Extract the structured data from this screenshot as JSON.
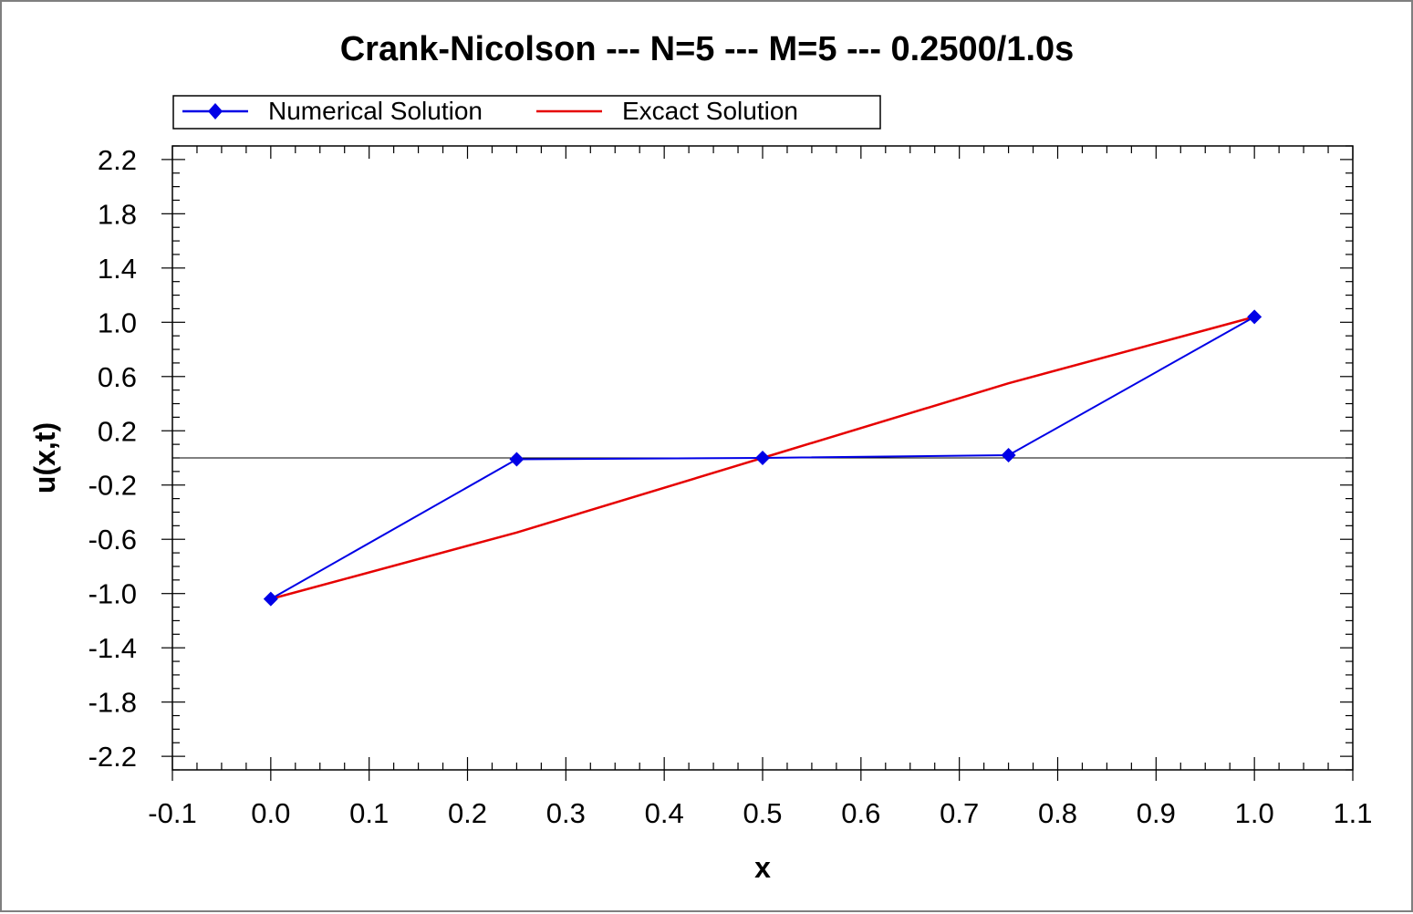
{
  "chart_data": {
    "type": "line",
    "title": "Crank-Nicolson --- N=5 --- M=5 --- 0.2500/1.0s",
    "xlabel": "x",
    "ylabel": "u(x,t)",
    "xlim": [
      -0.1,
      1.1
    ],
    "ylim": [
      -2.3,
      2.3
    ],
    "xticks": [
      -0.1,
      0.0,
      0.1,
      0.2,
      0.3,
      0.4,
      0.5,
      0.6,
      0.7,
      0.8,
      0.9,
      1.0,
      1.1
    ],
    "xtick_labels": [
      "-0.1",
      "0.0",
      "0.1",
      "0.2",
      "0.3",
      "0.4",
      "0.5",
      "0.6",
      "0.7",
      "0.8",
      "0.9",
      "1.0",
      "1.1"
    ],
    "yticks": [
      2.2,
      1.8,
      1.4,
      1.0,
      0.6,
      0.2,
      -0.2,
      -0.6,
      -1.0,
      -1.4,
      -1.8,
      -2.2
    ],
    "ytick_labels": [
      "2.2",
      "1.8",
      "1.4",
      "1.0",
      "0.6",
      "0.2",
      "-0.2",
      "-0.6",
      "-1.0",
      "-1.4",
      "-1.8",
      "-2.2"
    ],
    "grid": false,
    "zero_line": true,
    "legend_position": "top",
    "series": [
      {
        "name": "Numerical Solution",
        "color": "#0000e6",
        "marker": "diamond",
        "x": [
          0.0,
          0.25,
          0.5,
          0.75,
          1.0
        ],
        "y": [
          -1.04,
          -0.01,
          0.0,
          0.02,
          1.04
        ]
      },
      {
        "name": "Excact Solution",
        "color": "#e60000",
        "marker": "none",
        "x": [
          0.0,
          0.25,
          0.5,
          0.75,
          1.0
        ],
        "y": [
          -1.04,
          -0.55,
          0.0,
          0.55,
          1.04
        ]
      }
    ]
  }
}
